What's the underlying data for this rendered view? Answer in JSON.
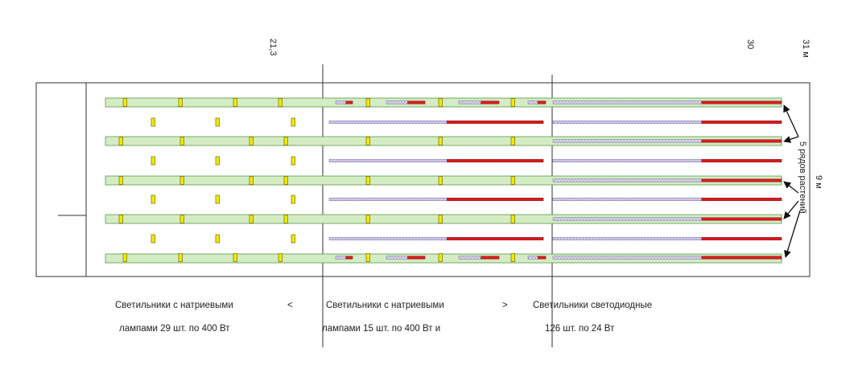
{
  "dimension_labels": {
    "mark_1": "21,3",
    "mark_2": "30",
    "mark_3": "31 м",
    "width": "9 м"
  },
  "annotation": "5 рядов растений",
  "captions": {
    "left_line1": "Светильники с натриевыми",
    "left_line2": "лампами 29 шт. по 400 Вт",
    "comparator_left": "<",
    "middle_line1": "Светильники с натриевыми",
    "middle_line2": "лампами 15 шт. по 400 Вт и",
    "comparator_right": ">",
    "right_line1": "Светильники светодиодные",
    "right_line2": "126 шт. по 24 Вт"
  },
  "colors": {
    "plant_row_fill": "#d4ecc4",
    "plant_row_stroke": "#5a9a48",
    "sodium_lamp_fill": "#f2ea00",
    "sodium_lamp_stroke": "#7a6a00",
    "led_red": "#d81c1c",
    "led_blue": "#5a72b8"
  }
}
